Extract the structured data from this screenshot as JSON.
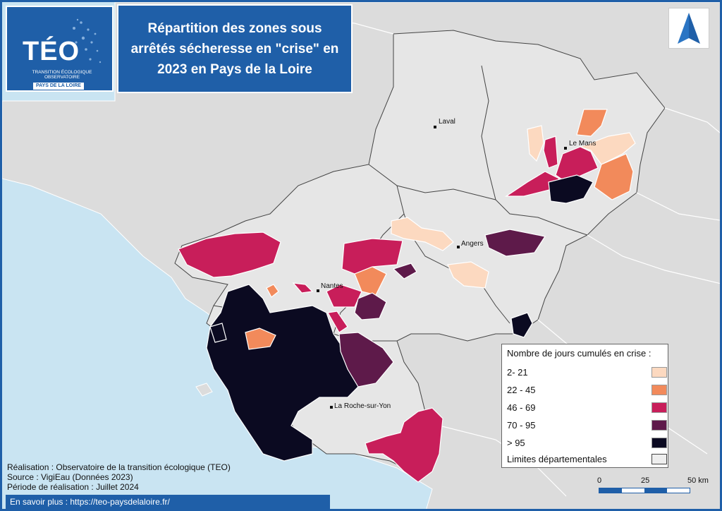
{
  "title": "Répartition des zones sous arrêtés sécheresse en \"crise\" en 2023 en Pays de la Loire",
  "logo": {
    "name": "TÉO",
    "subtitle": "TRANSITION ÉCOLOGIQUE OBSERVATOIRE",
    "region": "PAYS DE LA LOIRE"
  },
  "cities": [
    {
      "name": "Laval"
    },
    {
      "name": "Le Mans"
    },
    {
      "name": "Angers"
    },
    {
      "name": "Nantes"
    },
    {
      "name": "La Roche-sur-Yon"
    }
  ],
  "legend": {
    "title": "Nombre de jours cumulés en crise :",
    "classes": [
      {
        "label": "2- 21",
        "color": "#fcd9c0"
      },
      {
        "label": "22 - 45",
        "color": "#f28a5b"
      },
      {
        "label": "46 - 69",
        "color": "#c81e5a"
      },
      {
        "label": "70 - 95",
        "color": "#5e1a4a"
      },
      {
        "label": "> 95",
        "color": "#0b0a21"
      }
    ],
    "boundary_label": "Limites départementales"
  },
  "scale": {
    "labels": [
      "0",
      "25",
      "50 km"
    ]
  },
  "credits": [
    "Réalisation : Observatoire de la transition écologique (TEO)",
    "Source : VigiEau (Données 2023)",
    "Période de réalisation : Juillet 2024"
  ],
  "more_link": "En savoir plus : https://teo-paysdelaloire.fr/",
  "colors": {
    "sea": "#c9e4f2",
    "land_outside": "#dcdcdc",
    "region": "#e6e6e6",
    "brand_blue": "#1f5fa8"
  }
}
